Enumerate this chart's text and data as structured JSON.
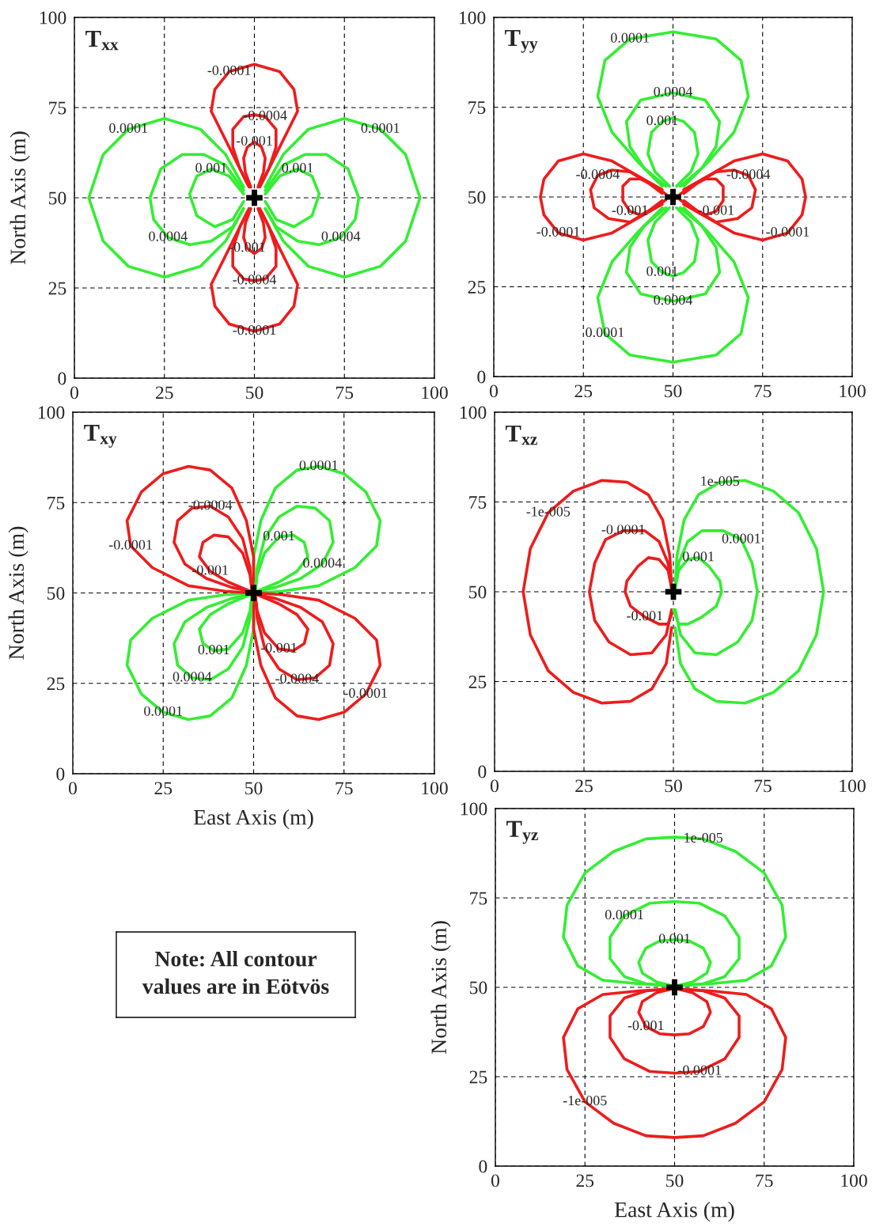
{
  "chart_data": [
    {
      "type": "line",
      "title": "T$_{xx}$",
      "ylabel": "North Axis (m)",
      "xlim": [
        0,
        100
      ],
      "ylim": [
        0,
        100
      ],
      "xticks": [
        0,
        25,
        50,
        75,
        100
      ],
      "yticks": [
        0,
        25,
        50,
        75,
        100
      ],
      "grid": true,
      "series": [
        {
          "color": "#33ee33",
          "x": [
            53,
            58,
            65,
            75,
            85,
            92,
            96,
            92,
            85,
            75,
            65,
            58,
            53
          ],
          "values": [
            53,
            62,
            69,
            72,
            69,
            62,
            50,
            38,
            31,
            28,
            31,
            38,
            47
          ]
        },
        {
          "color": "#33ee33",
          "x": [
            47,
            42,
            35,
            25,
            15,
            8,
            4,
            8,
            15,
            25,
            35,
            42,
            47
          ],
          "values": [
            53,
            62,
            69,
            72,
            69,
            62,
            50,
            38,
            31,
            28,
            31,
            38,
            47
          ]
        },
        {
          "color": "#33ee33",
          "x": [
            53,
            58,
            64,
            70,
            76,
            79,
            78,
            74,
            68,
            62,
            56,
            53
          ],
          "values": [
            52,
            59,
            62,
            62,
            58,
            50,
            44,
            39,
            37,
            38,
            42,
            47
          ]
        },
        {
          "color": "#33ee33",
          "x": [
            47,
            42,
            36,
            30,
            24,
            21,
            22,
            26,
            32,
            38,
            44,
            47
          ],
          "values": [
            52,
            59,
            62,
            62,
            58,
            50,
            44,
            39,
            37,
            38,
            42,
            47
          ]
        },
        {
          "color": "#33ee33",
          "x": [
            53,
            57,
            62,
            66,
            68,
            66,
            61,
            56,
            53
          ],
          "values": [
            51,
            56,
            58,
            56,
            51,
            45,
            42,
            44,
            49
          ]
        },
        {
          "color": "#33ee33",
          "x": [
            47,
            43,
            38,
            34,
            32,
            34,
            39,
            44,
            47
          ],
          "values": [
            51,
            56,
            58,
            56,
            51,
            45,
            42,
            44,
            49
          ]
        },
        {
          "color": "#ee1c1c",
          "x": [
            48,
            45,
            42,
            38,
            39,
            43,
            50,
            57,
            61,
            62,
            58,
            55,
            52
          ],
          "values": [
            54,
            60,
            66,
            74,
            80,
            85,
            87,
            85,
            80,
            74,
            66,
            60,
            54
          ]
        },
        {
          "color": "#ee1c1c",
          "x": [
            48,
            45,
            42,
            38,
            39,
            43,
            50,
            57,
            61,
            62,
            58,
            55,
            52
          ],
          "values": [
            46,
            40,
            34,
            26,
            20,
            15,
            13,
            15,
            20,
            26,
            34,
            40,
            46
          ]
        },
        {
          "color": "#ee1c1c",
          "x": [
            48.5,
            46,
            44,
            44,
            47,
            50,
            53,
            56,
            56,
            54,
            51.5
          ],
          "values": [
            53,
            58,
            64,
            69,
            72.5,
            73,
            72.5,
            69,
            64,
            58,
            53
          ]
        },
        {
          "color": "#ee1c1c",
          "x": [
            48.5,
            46,
            44,
            44,
            47,
            50,
            53,
            56,
            56,
            54,
            51.5
          ],
          "values": [
            47,
            42,
            36,
            31,
            27.5,
            27,
            27.5,
            31,
            36,
            42,
            47
          ]
        },
        {
          "color": "#ee1c1c",
          "x": [
            49,
            47.5,
            47,
            48,
            50,
            52,
            53,
            52.5,
            51
          ],
          "values": [
            53,
            57,
            61,
            64,
            65.5,
            64,
            61,
            57,
            53
          ]
        },
        {
          "color": "#ee1c1c",
          "x": [
            49,
            47.5,
            47,
            48,
            50,
            52,
            53,
            52.5,
            51
          ],
          "values": [
            47,
            43,
            39,
            36,
            34.5,
            36,
            39,
            43,
            47
          ]
        },
        {
          "type": "scatter",
          "marker": "cross",
          "color": "#000000",
          "x": [
            50
          ],
          "values": [
            50
          ]
        }
      ],
      "annotations": [
        {
          "text": "0.0001",
          "x": 85,
          "y": 69
        },
        {
          "text": "0.0001",
          "x": 15,
          "y": 69
        },
        {
          "text": "0.0004",
          "x": 74,
          "y": 39
        },
        {
          "text": "0.0004",
          "x": 26,
          "y": 39
        },
        {
          "text": "0.001",
          "x": 62,
          "y": 58
        },
        {
          "text": "0.001",
          "x": 38,
          "y": 58
        },
        {
          "text": "-0.0001",
          "x": 43,
          "y": 85
        },
        {
          "text": "-0.0004",
          "x": 53,
          "y": 72.5
        },
        {
          "text": "-0.001",
          "x": 50,
          "y": 65.5
        },
        {
          "text": "-0.001",
          "x": 48,
          "y": 36
        },
        {
          "text": "-0.0004",
          "x": 50,
          "y": 27
        },
        {
          "text": "-0.0001",
          "x": 50,
          "y": 13
        }
      ]
    },
    {
      "type": "line",
      "title": "T$_{yy}$",
      "xlim": [
        0,
        100
      ],
      "ylim": [
        0,
        100
      ],
      "xticks": [
        0,
        25,
        50,
        75,
        100
      ],
      "yticks": [
        0,
        25,
        50,
        75,
        100
      ],
      "grid": true,
      "series": [
        {
          "color": "#33ee33",
          "x": [
            47,
            40,
            33,
            29,
            31,
            38,
            50,
            62,
            69,
            71,
            67,
            60,
            53
          ],
          "values": [
            53,
            60,
            68,
            78,
            88,
            94,
            96,
            94,
            88,
            78,
            68,
            60,
            53
          ]
        },
        {
          "color": "#33ee33",
          "x": [
            47,
            40,
            33,
            29,
            31,
            38,
            50,
            62,
            69,
            71,
            67,
            60,
            53
          ],
          "values": [
            47,
            40,
            32,
            22,
            12,
            6,
            4,
            6,
            12,
            22,
            32,
            40,
            47
          ]
        },
        {
          "color": "#33ee33",
          "x": [
            48,
            42,
            38,
            37,
            41,
            50,
            59,
            63,
            62,
            58,
            52
          ],
          "values": [
            53,
            58,
            64,
            71,
            77,
            79,
            77,
            71,
            64,
            58,
            53
          ]
        },
        {
          "color": "#33ee33",
          "x": [
            48,
            42,
            38,
            37,
            41,
            50,
            59,
            63,
            62,
            58,
            52
          ],
          "values": [
            47,
            42,
            36,
            29,
            23,
            21,
            23,
            29,
            36,
            42,
            47
          ]
        },
        {
          "color": "#33ee33",
          "x": [
            49,
            45,
            43,
            44,
            47,
            50,
            53,
            56,
            57,
            55,
            51
          ],
          "values": [
            53,
            57,
            62,
            68,
            71,
            72,
            71,
            68,
            62,
            57,
            53
          ]
        },
        {
          "color": "#33ee33",
          "x": [
            49,
            45,
            43,
            44,
            47,
            50,
            53,
            56,
            57,
            55,
            51
          ],
          "values": [
            47,
            43,
            38,
            32,
            29,
            28,
            29,
            32,
            38,
            43,
            47
          ]
        },
        {
          "color": "#ee1c1c",
          "x": [
            53,
            60,
            67,
            75,
            82,
            86,
            87,
            86,
            82,
            75,
            67,
            60,
            53
          ],
          "values": [
            52,
            56,
            60,
            62,
            60,
            55,
            50,
            45,
            40,
            38,
            40,
            44,
            48
          ]
        },
        {
          "color": "#ee1c1c",
          "x": [
            47,
            40,
            33,
            25,
            18,
            14,
            13,
            14,
            18,
            25,
            33,
            40,
            47
          ],
          "values": [
            52,
            56,
            60,
            62,
            60,
            55,
            50,
            45,
            40,
            38,
            40,
            44,
            48
          ]
        },
        {
          "color": "#ee1c1c",
          "x": [
            53,
            57,
            62,
            67,
            71,
            73,
            72,
            68,
            62,
            57,
            53
          ],
          "values": [
            51,
            54,
            57,
            57.5,
            56,
            52,
            47,
            44,
            43,
            46,
            49
          ]
        },
        {
          "color": "#ee1c1c",
          "x": [
            47,
            43,
            38,
            33,
            29,
            27,
            28,
            32,
            38,
            43,
            47
          ],
          "values": [
            51,
            54,
            57,
            57.5,
            56,
            52,
            47,
            44,
            43,
            46,
            49
          ]
        },
        {
          "color": "#ee1c1c",
          "x": [
            52,
            55,
            59,
            62,
            64,
            64,
            62,
            59,
            55,
            52
          ],
          "values": [
            50.8,
            53,
            55,
            55,
            53,
            49,
            46,
            45,
            47,
            49.2
          ]
        },
        {
          "color": "#ee1c1c",
          "x": [
            48,
            45,
            41,
            38,
            36,
            36,
            38,
            41,
            45,
            48
          ],
          "values": [
            50.8,
            53,
            55,
            55,
            53,
            49,
            46,
            45,
            47,
            49.2
          ]
        },
        {
          "type": "scatter",
          "marker": "cross",
          "color": "#000000",
          "x": [
            50
          ],
          "values": [
            50
          ]
        }
      ],
      "annotations": [
        {
          "text": "0.0001",
          "x": 38,
          "y": 94
        },
        {
          "text": "0.0001",
          "x": 31,
          "y": 12
        },
        {
          "text": "0.0004",
          "x": 50,
          "y": 79
        },
        {
          "text": "0.0004",
          "x": 50,
          "y": 21
        },
        {
          "text": "0.001",
          "x": 47,
          "y": 71
        },
        {
          "text": "0.001",
          "x": 47,
          "y": 29
        },
        {
          "text": "-0.0001",
          "x": 82,
          "y": 40
        },
        {
          "text": "-0.0001",
          "x": 18,
          "y": 40
        },
        {
          "text": "-0.0004",
          "x": 71,
          "y": 56
        },
        {
          "text": "-0.0004",
          "x": 29,
          "y": 56
        },
        {
          "text": "-0.001",
          "x": 62,
          "y": 46
        },
        {
          "text": "-0.001",
          "x": 38,
          "y": 46
        }
      ]
    },
    {
      "type": "line",
      "title": "T$_{xy}$",
      "xlabel": "East Axis (m)",
      "ylabel": "North Axis (m)",
      "xlim": [
        0,
        100
      ],
      "ylim": [
        0,
        100
      ],
      "xticks": [
        0,
        25,
        50,
        75,
        100
      ],
      "yticks": [
        0,
        25,
        50,
        75,
        100
      ],
      "grid": true,
      "series": [
        {
          "color": "#33ee33",
          "x": [
            50,
            50,
            52,
            56,
            62,
            68,
            75,
            81,
            85,
            84,
            78,
            68,
            58,
            51
          ],
          "values": [
            51,
            60,
            70,
            79,
            84,
            85,
            83,
            78,
            70,
            63,
            57,
            52,
            50.5,
            50
          ]
        },
        {
          "color": "#33ee33",
          "x": [
            50,
            50,
            48,
            44,
            38,
            32,
            25,
            19,
            15,
            16,
            22,
            32,
            42,
            49
          ],
          "values": [
            49,
            40,
            30,
            21,
            16,
            15,
            17,
            22,
            30,
            37,
            43,
            48,
            49.5,
            50
          ]
        },
        {
          "color": "#ee1c1c",
          "x": [
            50,
            50,
            48,
            44,
            38,
            32,
            25,
            19,
            15,
            16,
            22,
            32,
            42,
            49
          ],
          "values": [
            51,
            60,
            70,
            79,
            84,
            85,
            83,
            78,
            70,
            63,
            57,
            52,
            50.5,
            50
          ]
        },
        {
          "color": "#ee1c1c",
          "x": [
            50,
            50,
            52,
            56,
            62,
            68,
            75,
            81,
            85,
            84,
            78,
            68,
            58,
            51
          ],
          "values": [
            49,
            40,
            30,
            21,
            16,
            15,
            17,
            22,
            30,
            37,
            43,
            48,
            49.5,
            50
          ]
        },
        {
          "color": "#33ee33",
          "x": [
            50.5,
            51,
            53,
            57,
            62,
            67,
            71,
            72,
            69,
            63,
            56,
            51
          ],
          "values": [
            51,
            57,
            65,
            71,
            74,
            73.5,
            70,
            64,
            58,
            54,
            51.5,
            50.5
          ]
        },
        {
          "color": "#33ee33",
          "x": [
            49.5,
            49,
            47,
            43,
            38,
            33,
            29,
            28,
            31,
            37,
            44,
            49
          ],
          "values": [
            49,
            43,
            35,
            29,
            26,
            26.5,
            30,
            36,
            42,
            46,
            48.5,
            49.5
          ]
        },
        {
          "color": "#ee1c1c",
          "x": [
            49.5,
            49,
            47,
            43,
            38,
            33,
            29,
            28,
            31,
            37,
            44,
            49
          ],
          "values": [
            51,
            57,
            65,
            71,
            74,
            73.5,
            70,
            64,
            58,
            54,
            51.5,
            50.5
          ]
        },
        {
          "color": "#ee1c1c",
          "x": [
            50.5,
            51,
            53,
            57,
            62,
            67,
            71,
            72,
            69,
            63,
            56,
            51
          ],
          "values": [
            49,
            43,
            35,
            29,
            26,
            26.5,
            30,
            36,
            42,
            46,
            48.5,
            49.5
          ]
        },
        {
          "color": "#33ee33",
          "x": [
            50.5,
            51,
            53,
            57,
            61,
            64,
            65,
            62,
            57,
            51
          ],
          "values": [
            50.8,
            55,
            61,
            65.5,
            66,
            64,
            60,
            56,
            53,
            50.5
          ]
        },
        {
          "color": "#33ee33",
          "x": [
            49.5,
            49,
            47,
            43,
            39,
            36,
            35,
            38,
            43,
            49
          ],
          "values": [
            49.2,
            45,
            39,
            34.5,
            34,
            36,
            40,
            44,
            47,
            49.5
          ]
        },
        {
          "color": "#ee1c1c",
          "x": [
            49.5,
            49,
            47,
            43,
            39,
            36,
            35,
            38,
            43,
            49
          ],
          "values": [
            50.8,
            55,
            61,
            65.5,
            66,
            64,
            60,
            56,
            53,
            50.5
          ]
        },
        {
          "color": "#ee1c1c",
          "x": [
            50.5,
            51,
            53,
            57,
            61,
            64,
            65,
            62,
            57,
            51
          ],
          "values": [
            49.2,
            45,
            39,
            34.5,
            34,
            36,
            40,
            44,
            47,
            49.5
          ]
        },
        {
          "type": "scatter",
          "marker": "cross",
          "color": "#000000",
          "x": [
            50
          ],
          "values": [
            50
          ]
        }
      ],
      "annotations": [
        {
          "text": "0.0001",
          "x": 68,
          "y": 85
        },
        {
          "text": "0.0004",
          "x": 69,
          "y": 58
        },
        {
          "text": "0.001",
          "x": 57,
          "y": 65.5
        },
        {
          "text": "0.001",
          "x": 39,
          "y": 34
        },
        {
          "text": "0.0004",
          "x": 33,
          "y": 26.5
        },
        {
          "text": "0.0001",
          "x": 25,
          "y": 17
        },
        {
          "text": "-0.0004",
          "x": 38,
          "y": 74
        },
        {
          "text": "-0.0001",
          "x": 16,
          "y": 63
        },
        {
          "text": "-0.001",
          "x": 38,
          "y": 56
        },
        {
          "text": "-0.001",
          "x": 57,
          "y": 34.5
        },
        {
          "text": "-0.0004",
          "x": 62,
          "y": 26
        },
        {
          "text": "-0.0001",
          "x": 81,
          "y": 22
        }
      ]
    },
    {
      "type": "line",
      "title": "T$_{xz}$",
      "xlim": [
        0,
        100
      ],
      "ylim": [
        0,
        100
      ],
      "xticks": [
        0,
        25,
        50,
        75,
        100
      ],
      "yticks": [
        0,
        25,
        50,
        75,
        100
      ],
      "grid": true,
      "series": [
        {
          "color": "#ee1c1c",
          "x": [
            49.5,
            49,
            47,
            43,
            37,
            30,
            22,
            15,
            10,
            8,
            10,
            15,
            22,
            30,
            38,
            44,
            48,
            49.5
          ],
          "values": [
            51,
            60,
            70,
            77,
            80.5,
            81,
            78,
            72,
            62,
            50,
            38,
            28,
            22,
            19,
            19.5,
            23,
            30,
            40
          ]
        },
        {
          "color": "#33ee33",
          "x": [
            50.5,
            51,
            53,
            57,
            63,
            70,
            78,
            85,
            90,
            92,
            90,
            85,
            78,
            70,
            62,
            56,
            52,
            50.5
          ],
          "values": [
            51,
            60,
            70,
            77,
            80.5,
            81,
            78,
            72,
            62,
            50,
            38,
            28,
            22,
            19,
            19.5,
            23,
            30,
            40
          ]
        },
        {
          "color": "#ee1c1c",
          "x": [
            49.5,
            48.5,
            46,
            42,
            36,
            31,
            28,
            26.5,
            28,
            32,
            38,
            44,
            48,
            49.5
          ],
          "values": [
            51,
            58,
            64,
            67,
            67,
            64.5,
            58,
            50,
            42,
            36,
            32.5,
            33,
            38,
            45
          ]
        },
        {
          "color": "#33ee33",
          "x": [
            50.5,
            51.5,
            54,
            58,
            64,
            69,
            72,
            73.5,
            72,
            68,
            62,
            56,
            52,
            50.5
          ],
          "values": [
            51,
            58,
            64,
            67,
            67,
            64.5,
            58,
            50,
            42,
            36,
            32.5,
            33,
            38,
            45
          ]
        },
        {
          "color": "#ee1c1c",
          "x": [
            49.5,
            48.5,
            46,
            43,
            40,
            37,
            36.5,
            38,
            42,
            46,
            48.5,
            50
          ],
          "values": [
            51,
            56,
            59,
            59.5,
            57,
            53,
            50,
            46,
            43,
            41,
            41,
            45
          ]
        },
        {
          "color": "#33ee33",
          "x": [
            50.5,
            51.5,
            54,
            57,
            60,
            63,
            63.5,
            62,
            58,
            54,
            51.5,
            50
          ],
          "values": [
            51,
            56,
            59,
            59.5,
            57,
            53,
            50,
            46,
            43,
            41,
            41,
            45
          ]
        },
        {
          "type": "scatter",
          "marker": "cross",
          "color": "#000000",
          "x": [
            50
          ],
          "values": [
            50
          ]
        }
      ],
      "annotations": [
        {
          "text": "-1e-005",
          "x": 15,
          "y": 72
        },
        {
          "text": "-0.0001",
          "x": 36,
          "y": 67
        },
        {
          "text": "-0.001",
          "x": 42,
          "y": 43
        },
        {
          "text": "1e-005",
          "x": 63,
          "y": 80.5
        },
        {
          "text": "0.0001",
          "x": 69,
          "y": 64.5
        },
        {
          "text": "0.001",
          "x": 57,
          "y": 59.5
        }
      ]
    },
    {
      "type": "other",
      "annotations": [
        "Note: All contour\nvalues are in Eötvös"
      ]
    },
    {
      "type": "line",
      "title": "T$_{yz}$",
      "xlabel": "East Axis (m)",
      "ylabel": "North Axis (m)",
      "xlim": [
        0,
        100
      ],
      "ylim": [
        0,
        100
      ],
      "xticks": [
        0,
        25,
        50,
        75,
        100
      ],
      "yticks": [
        0,
        25,
        50,
        75,
        100
      ],
      "grid": true,
      "series": [
        {
          "color": "#33ee33",
          "x": [
            48,
            40,
            30,
            23,
            19,
            20,
            25,
            33,
            42,
            50,
            58,
            67,
            75,
            80,
            81,
            77,
            70,
            60,
            52
          ],
          "values": [
            50.5,
            51,
            52,
            56,
            64,
            73,
            82,
            88,
            91.5,
            92,
            91.5,
            88,
            82,
            73,
            64,
            56,
            52,
            51,
            50.5
          ]
        },
        {
          "color": "#ee1c1c",
          "x": [
            48,
            40,
            30,
            23,
            19,
            20,
            25,
            33,
            42,
            50,
            58,
            67,
            75,
            80,
            81,
            77,
            70,
            60,
            52
          ],
          "values": [
            49.5,
            49,
            48,
            44,
            36,
            27,
            18,
            12,
            8.5,
            8,
            8.5,
            12,
            18,
            27,
            36,
            44,
            48,
            49,
            49.5
          ]
        },
        {
          "color": "#33ee33",
          "x": [
            48.5,
            42,
            36,
            32,
            32,
            36,
            43,
            50,
            57,
            64,
            68,
            68,
            64,
            58,
            51.5
          ],
          "values": [
            50.5,
            51,
            53,
            58,
            64,
            70,
            73.5,
            74,
            73.5,
            70,
            64,
            58,
            53,
            51,
            50.5
          ]
        },
        {
          "color": "#ee1c1c",
          "x": [
            48.5,
            42,
            36,
            32,
            32,
            36,
            43,
            50,
            57,
            64,
            68,
            68,
            64,
            58,
            51.5
          ],
          "values": [
            49.5,
            49,
            47,
            42,
            36,
            30,
            26.5,
            26,
            26.5,
            30,
            36,
            42,
            47,
            49,
            49.5
          ]
        },
        {
          "color": "#33ee33",
          "x": [
            49,
            45,
            41,
            40,
            42,
            46,
            50,
            54,
            58,
            60,
            59,
            55,
            51
          ],
          "values": [
            50.5,
            51.5,
            54,
            57,
            61,
            63,
            63.3,
            63,
            61,
            57,
            54,
            51.5,
            50.5
          ]
        },
        {
          "color": "#ee1c1c",
          "x": [
            49,
            45,
            41,
            40,
            42,
            46,
            50,
            54,
            58,
            60,
            59,
            55,
            51
          ],
          "values": [
            49.5,
            48.5,
            46,
            43,
            39,
            37,
            36.7,
            37,
            39,
            43,
            46,
            48.5,
            49.5
          ]
        },
        {
          "type": "scatter",
          "marker": "cross",
          "color": "#000000",
          "x": [
            50
          ],
          "values": [
            50
          ]
        }
      ],
      "annotations": [
        {
          "text": "1e-005",
          "x": 58,
          "y": 91.5
        },
        {
          "text": "0.0001",
          "x": 36,
          "y": 70
        },
        {
          "text": "0.001",
          "x": 50,
          "y": 63.3
        },
        {
          "text": "-0.001",
          "x": 42,
          "y": 39
        },
        {
          "text": "-0.0001",
          "x": 57,
          "y": 26.5
        },
        {
          "text": "-1e-005",
          "x": 25,
          "y": 18
        }
      ]
    }
  ]
}
